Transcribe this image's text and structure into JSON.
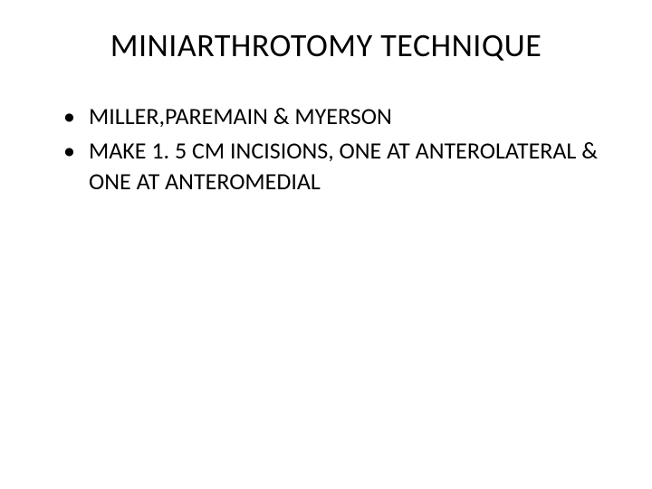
{
  "slide": {
    "title": "MINIARTHROTOMY  TECHNIQUE",
    "bullets": [
      "MILLER,PAREMAIN & MYERSON",
      "MAKE 1. 5 CM INCISIONS, ONE AT ANTEROLATERAL  & ONE AT ANTEROMEDIAL"
    ],
    "background_color": "#ffffff",
    "text_color": "#000000",
    "title_fontsize": 36,
    "body_fontsize": 26,
    "font_family": "Calibri"
  }
}
